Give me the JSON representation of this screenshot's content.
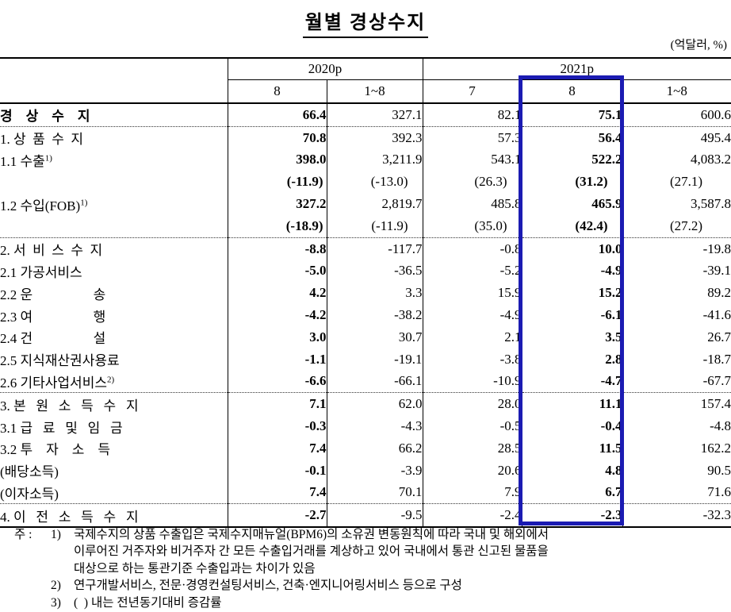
{
  "title": "월별 경상수지",
  "unit_note": "(억달러, %)",
  "colors": {
    "highlight_border": "#1b1bb2",
    "text": "#000000",
    "background": "#ffffff"
  },
  "table": {
    "corner_label": "",
    "column_groups": [
      {
        "label": "2020p",
        "span": 2
      },
      {
        "label": "2021p",
        "span": 3
      }
    ],
    "sub_headers": [
      "8",
      "1~8",
      "7",
      "8",
      "1~8"
    ],
    "highlighted_column": "2021p 8",
    "rows": [
      {
        "label": "경    상    수    지",
        "indent": 0,
        "bold_label": true,
        "values": [
          "66.4",
          "327.1",
          "82.1",
          "75.1",
          "600.6"
        ]
      },
      {
        "label": "1. 상  품  수  지",
        "indent": 1,
        "sep": true,
        "values": [
          "70.8",
          "392.3",
          "57.3",
          "56.4",
          "495.4"
        ]
      },
      {
        "label": "1.1 수출",
        "sup": "1)",
        "indent": 2,
        "values": [
          "398.0",
          "3,211.9",
          "543.1",
          "522.2",
          "4,083.2"
        ]
      },
      {
        "label": "",
        "indent": 2,
        "pct": true,
        "values": [
          "(-11.9)",
          "(-13.0)",
          "(26.3)",
          "(31.2)",
          "(27.1)"
        ]
      },
      {
        "label": "1.2 수입(FOB)",
        "sup": "1)",
        "indent": 2,
        "values": [
          "327.2",
          "2,819.7",
          "485.8",
          "465.9",
          "3,587.8"
        ]
      },
      {
        "label": "",
        "indent": 2,
        "pct": true,
        "values": [
          "(-18.9)",
          "(-11.9)",
          "(35.0)",
          "(42.4)",
          "(27.2)"
        ]
      },
      {
        "label": "2. 서  비  스  수  지",
        "indent": 1,
        "sep": true,
        "values": [
          "-8.8",
          "-117.7",
          "-0.8",
          "10.0",
          "-19.8"
        ]
      },
      {
        "label": "2.1 가공서비스",
        "indent": 2,
        "values": [
          "-5.0",
          "-36.5",
          "-5.2",
          "-4.9",
          "-39.1"
        ]
      },
      {
        "label": "2.2 운                  송",
        "indent": 2,
        "values": [
          "4.2",
          "3.3",
          "15.9",
          "15.2",
          "89.2"
        ]
      },
      {
        "label": "2.3 여                  행",
        "indent": 2,
        "values": [
          "-4.2",
          "-38.2",
          "-4.9",
          "-6.1",
          "-41.6"
        ]
      },
      {
        "label": "2.4 건                  설",
        "indent": 2,
        "values": [
          "3.0",
          "30.7",
          "2.1",
          "3.5",
          "26.7"
        ]
      },
      {
        "label": "2.5 지식재산권사용료",
        "indent": 2,
        "values": [
          "-1.1",
          "-19.1",
          "-3.8",
          "2.8",
          "-18.7"
        ]
      },
      {
        "label": "2.6 기타사업서비스",
        "sup": "2)",
        "indent": 2,
        "values": [
          "-6.6",
          "-66.1",
          "-10.9",
          "-4.7",
          "-67.7"
        ]
      },
      {
        "label": "3. 본   원   소   득   수   지",
        "indent": 1,
        "sep": true,
        "values": [
          "7.1",
          "62.0",
          "28.0",
          "11.1",
          "157.4"
        ]
      },
      {
        "label": "3.1 급   료   및   임   금",
        "indent": 2,
        "values": [
          "-0.3",
          "-4.3",
          "-0.5",
          "-0.4",
          "-4.8"
        ]
      },
      {
        "label": "3.2 투    자    소    득",
        "indent": 2,
        "values": [
          "7.4",
          "66.2",
          "28.5",
          "11.5",
          "162.2"
        ]
      },
      {
        "label": "(배당소득)",
        "indent": 3,
        "values": [
          "-0.1",
          "-3.9",
          "20.6",
          "4.8",
          "90.5"
        ]
      },
      {
        "label": "(이자소득)",
        "indent": 3,
        "values": [
          "7.4",
          "70.1",
          "7.9",
          "6.7",
          "71.6"
        ]
      },
      {
        "label": "4. 이   전   소   득   수   지",
        "indent": 1,
        "sep": true,
        "values": [
          "-2.7",
          "-9.5",
          "-2.4",
          "-2.3",
          "-32.3"
        ]
      }
    ]
  },
  "footnotes": {
    "prefix": "주 :",
    "items": [
      {
        "marker": "1)",
        "lines": [
          "국제수지의 상품 수출입은 국제수지매뉴얼(BPM6)의 소유권 변동원칙에 따라 국내 및 해외에서",
          "이루어진 거주자와 비거주자 간 모든 수출입거래를 계상하고 있어 국내에서 통관 신고된 물품을",
          "대상으로 하는 통관기준 수출입과는 차이가 있음"
        ]
      },
      {
        "marker": "2)",
        "lines": [
          "연구개발서비스, 전문·경영컨설팅서비스, 건축·엔지니어링서비스 등으로 구성"
        ]
      },
      {
        "marker": "3)",
        "lines": [
          "(  ) 내는 전년동기대비 증감률"
        ]
      }
    ]
  }
}
